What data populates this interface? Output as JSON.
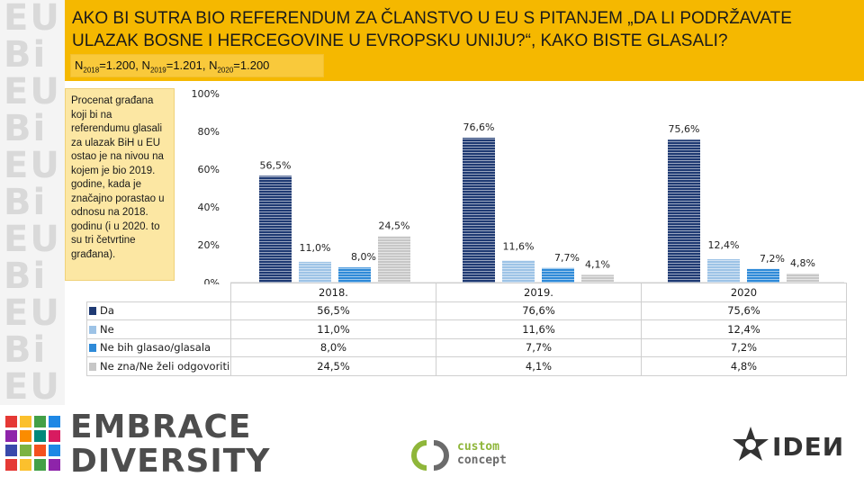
{
  "header": {
    "title": "AKO BI SUTRA BIO REFERENDUM ZA ČLANSTVO U EU S PITANJEM „DA LI PODRŽAVATE ULAZAK BOSNE I HERCEGOVINE U EVROPSKU UNIJU?“, KAKO BISTE GLASALI?",
    "sample": [
      {
        "n": "N",
        "sub": "2018",
        "val": "=1.200, "
      },
      {
        "n": "N",
        "sub": "2019",
        "val": "=1.201, "
      },
      {
        "n": "N",
        "sub": "2020",
        "val": "=1.200"
      }
    ]
  },
  "note": "Procenat građana koji bi na referendumu glasali za ulazak BiH u EU ostao je na nivou na kojem je bio 2019. godine, kada je značajno porastao u odnosu na 2018. godinu (i u 2020. to su tri četvrtine građana).",
  "chart_data": {
    "type": "bar",
    "categories": [
      "2018.",
      "2019.",
      "2020"
    ],
    "yticks": [
      "0%",
      "20%",
      "40%",
      "60%",
      "80%",
      "100%"
    ],
    "ylim": [
      0,
      100
    ],
    "series": [
      {
        "name": "Da",
        "values": [
          56.5,
          76.6,
          75.6
        ],
        "labels": [
          "56,5%",
          "76,6%",
          "75,6%"
        ],
        "color": "#1f3a73"
      },
      {
        "name": "Ne",
        "values": [
          11.0,
          11.6,
          12.4
        ],
        "labels": [
          "11,0%",
          "11,6%",
          "12,4%"
        ],
        "color": "#9dc3e6"
      },
      {
        "name": "Ne bih glasao/glasala",
        "values": [
          8.0,
          7.7,
          7.2
        ],
        "labels": [
          "8,0%",
          "7,7%",
          "7,2%"
        ],
        "color": "#2e8ad8"
      },
      {
        "name": "Ne zna/Ne želi odgovoriti",
        "values": [
          24.5,
          4.1,
          4.8
        ],
        "labels": [
          "24,5%",
          "4,1%",
          "4,8%"
        ],
        "color": "#c7c7c7"
      }
    ],
    "legend": "bottom-table"
  },
  "colors": {
    "header": "#f5b800",
    "note_bg": "#fce7a3"
  },
  "logos": {
    "left_strip_glyphs": [
      "EU",
      "Bi",
      "EU",
      "Bi",
      "EU",
      "Bi",
      "EU",
      "Bi",
      "EU",
      "Bi",
      "EU"
    ],
    "embrace_line1": "EMBRACE",
    "embrace_line2": "DIVERSITY",
    "custom_concept_line1": "custom",
    "custom_concept_line2": "concept",
    "iden_text": "IDEИ"
  }
}
